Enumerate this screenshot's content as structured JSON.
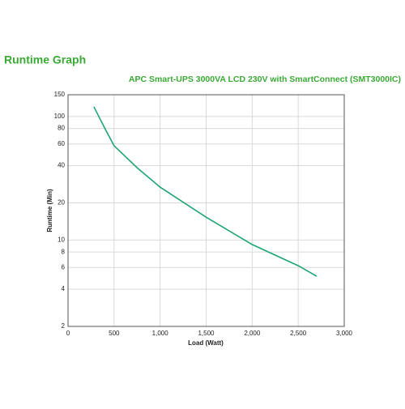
{
  "chart_data": {
    "type": "line",
    "title": "Runtime Graph",
    "subtitle": "APC Smart-UPS 3000VA LCD 230V with SmartConnect (SMT3000IC)",
    "x_label": "Load (Watt)",
    "y_label": "Runtime (Min)",
    "x": [
      281,
      400,
      500,
      750,
      1000,
      1500,
      2000,
      2500,
      2700
    ],
    "values": [
      120,
      80,
      58,
      38.5,
      26.8,
      15.3,
      9.2,
      6.2,
      5.1
    ],
    "color": "#1ea672",
    "title_color": "#3aaa35",
    "xlim": [
      0,
      3000
    ],
    "ylim": [
      2,
      150
    ],
    "ylog": true,
    "grid": true,
    "xticks": [
      0,
      500,
      {
        "value": 1000,
        "label": "1,000"
      },
      {
        "value": 1500,
        "label": "1,500"
      },
      {
        "value": 2000,
        "label": "2,000"
      },
      {
        "value": 2500,
        "label": "2,500"
      },
      {
        "value": 3000,
        "label": "3,000"
      }
    ],
    "yticks": [
      2,
      4,
      6,
      8,
      10,
      20,
      40,
      60,
      80,
      100,
      150
    ]
  }
}
